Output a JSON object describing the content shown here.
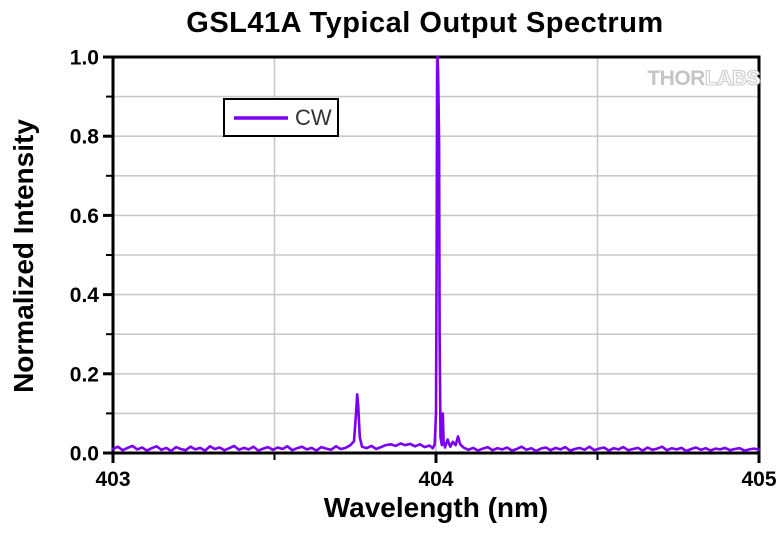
{
  "chart_data": {
    "type": "line",
    "title": "GSL41A Typical Output Spectrum",
    "xlabel": "Wavelength (nm)",
    "ylabel": "Normalized Intensity",
    "xlim": [
      403,
      405
    ],
    "ylim": [
      0,
      1
    ],
    "grid": "on",
    "legend": {
      "position": "top-left",
      "label": "CW"
    },
    "colors": {
      "trace": "#7B00F2",
      "grid": "#C9C9C9",
      "axis": "#000000"
    },
    "axes": {
      "x": {
        "major_ticks": [
          403,
          404,
          405
        ],
        "major_labels": [
          "403",
          "404",
          "405"
        ],
        "minor_ticks": [
          403.5,
          404.5
        ],
        "grid_lines": [
          403.5,
          404.0,
          404.5
        ]
      },
      "y": {
        "major_ticks": [
          0,
          0.2,
          0.4,
          0.6,
          0.8,
          1.0
        ],
        "major_labels": [
          "0.0",
          "0.2",
          "0.4",
          "0.6",
          "0.8",
          "1.0"
        ],
        "minor_ticks": [
          0.1,
          0.3,
          0.5,
          0.7,
          0.9
        ],
        "grid_lines": [
          0.1,
          0.2,
          0.3,
          0.4,
          0.5,
          0.6,
          0.7,
          0.8,
          0.9
        ]
      }
    },
    "annotations": {
      "main_peak": {
        "x": 404.005,
        "y": 1.0
      },
      "secondary_peak": {
        "x": 403.756,
        "y": 0.148
      },
      "noise_floor": 0.01
    },
    "series": [
      {
        "name": "CW",
        "color": "#7B00F2",
        "segments": [
          {
            "x_start": 403.0,
            "x_step": 0.015,
            "values": [
              0.01,
              0.016,
              0.007,
              0.013,
              0.018,
              0.009,
              0.014,
              0.006,
              0.012,
              0.017,
              0.008,
              0.013,
              0.005,
              0.015,
              0.01,
              0.007,
              0.016,
              0.009,
              0.013,
              0.006,
              0.017,
              0.01,
              0.014,
              0.007,
              0.012,
              0.018,
              0.008,
              0.013,
              0.009,
              0.016,
              0.006,
              0.011,
              0.015,
              0.008,
              0.014,
              0.01,
              0.017,
              0.007,
              0.012,
              0.016,
              0.009,
              0.013,
              0.006,
              0.015,
              0.011,
              0.008,
              0.017,
              0.01,
              0.013,
              0.02
            ]
          },
          {
            "points": [
              [
                403.746,
                0.03
              ],
              [
                403.752,
                0.095
              ],
              [
                403.756,
                0.148
              ],
              [
                403.759,
                0.12
              ],
              [
                403.764,
                0.04
              ],
              [
                403.771,
                0.016
              ]
            ]
          },
          {
            "x_start": 403.785,
            "x_step": 0.015,
            "values": [
              0.012,
              0.018,
              0.01,
              0.015,
              0.02,
              0.022,
              0.018,
              0.024,
              0.02,
              0.023,
              0.017,
              0.022,
              0.015,
              0.019
            ]
          },
          {
            "points": [
              [
                403.99,
                0.012
              ],
              [
                403.996,
                0.022
              ],
              [
                404.0,
                0.1
              ],
              [
                404.002,
                0.45
              ],
              [
                404.004,
                0.95
              ],
              [
                404.005,
                1.0
              ],
              [
                404.0065,
                0.96
              ],
              [
                404.008,
                0.88
              ],
              [
                404.0095,
                0.78
              ],
              [
                404.011,
                0.3
              ],
              [
                404.014,
                0.04
              ],
              [
                404.018,
                0.02
              ],
              [
                404.021,
                0.1
              ],
              [
                404.0235,
                0.03
              ]
            ]
          },
          {
            "points": [
              [
                404.028,
                0.014
              ],
              [
                404.036,
                0.034
              ],
              [
                404.044,
                0.016
              ],
              [
                404.052,
                0.028
              ],
              [
                404.061,
                0.02
              ],
              [
                404.068,
                0.042
              ],
              [
                404.075,
                0.022
              ],
              [
                404.085,
                0.014
              ]
            ]
          },
          {
            "x_start": 404.1,
            "x_step": 0.015,
            "values": [
              0.008,
              0.013,
              0.006,
              0.011,
              0.015,
              0.007,
              0.012,
              0.009,
              0.014,
              0.006,
              0.01,
              0.016,
              0.008,
              0.012,
              0.005,
              0.011,
              0.014,
              0.007,
              0.013,
              0.009,
              0.015,
              0.006,
              0.01,
              0.013,
              0.008,
              0.016,
              0.007,
              0.011,
              0.014,
              0.006,
              0.012,
              0.009,
              0.015,
              0.007,
              0.01,
              0.013,
              0.006,
              0.014,
              0.008,
              0.011,
              0.016,
              0.007,
              0.012,
              0.009,
              0.013,
              0.005,
              0.01,
              0.014,
              0.008,
              0.012,
              0.006,
              0.011,
              0.009,
              0.013,
              0.007,
              0.01,
              0.012,
              0.006,
              0.009,
              0.011,
              0.008
            ]
          }
        ]
      }
    ]
  },
  "watermark": {
    "left": "THOR",
    "right": "LABS"
  }
}
